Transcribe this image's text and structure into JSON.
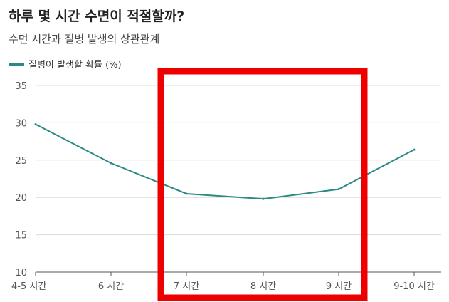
{
  "title": "하루 몇 시간 수면이 적절할까?",
  "subtitle": "수면 시간과 질병 발생의 상관관계",
  "colors": {
    "line": "#2a8a84",
    "highlight": "#ee0000",
    "grid": "#dcdcdc",
    "axis": "#555555"
  },
  "chart_data": {
    "type": "line",
    "categories": [
      "4-5 시간",
      "6 시간",
      "7 시간",
      "8 시간",
      "9 시간",
      "9-10 시간"
    ],
    "series": [
      {
        "name": "질병이 발생할 확률 (%)",
        "values": [
          29.8,
          24.6,
          20.5,
          19.8,
          21.1,
          26.4
        ]
      }
    ],
    "ylim": [
      10,
      35
    ],
    "yticks": [
      "35",
      "30",
      "25",
      "20",
      "15",
      "10"
    ],
    "grid": true,
    "legend": "top-left",
    "highlight": {
      "categories": [
        "7 시간",
        "8 시간",
        "9 시간"
      ],
      "style": "red box"
    }
  }
}
